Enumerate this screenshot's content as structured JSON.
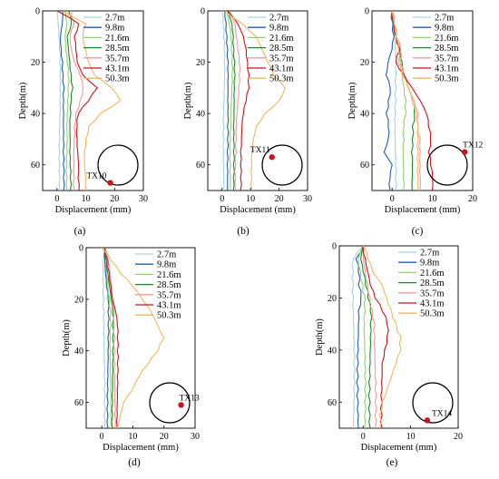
{
  "figure": {
    "legend_labels": [
      "2.7m",
      "9.8m",
      "21.6m",
      "28.5m",
      "35.7m",
      "43.1m",
      "50.3m"
    ],
    "series_colors": [
      "#a8d0e6",
      "#1f5fb0",
      "#8fd46a",
      "#1a8a2a",
      "#f39a9a",
      "#c8141e",
      "#f7b55c"
    ],
    "marker_color": "#c8141e"
  },
  "chart_data": [
    {
      "type": "line",
      "panel_label": "(a)",
      "xlabel": "Displacement (mm)",
      "ylabel": "Depth(m)",
      "xlim": [
        -5,
        30
      ],
      "ylim": [
        0,
        70
      ],
      "xticks": [
        0,
        10,
        20,
        30
      ],
      "yticks": [
        0,
        20,
        40,
        60
      ],
      "tick_labels_x": [
        "0",
        "10",
        "20",
        "30"
      ],
      "tick_labels_y": [
        "0",
        "20",
        "40",
        "60"
      ],
      "y_inverted": true,
      "legend": [
        "2.7m",
        "9.8m",
        "21.6m",
        "28.5m",
        "35.7m",
        "43.1m",
        "50.3m"
      ],
      "legend_position": "top-right",
      "annotation": {
        "text": "TX10",
        "position": "bottom-right",
        "marker_x": 18.5,
        "marker_y": 67
      },
      "depth": [
        0,
        5,
        10,
        15,
        20,
        25,
        30,
        35,
        40,
        45,
        50,
        55,
        60,
        65,
        70
      ],
      "series": [
        {
          "name": "2.7m",
          "values": [
            0,
            0.4,
            0.6,
            0.8,
            0.9,
            1,
            1,
            1,
            1.1,
            1,
            1,
            0.9,
            1,
            1,
            1
          ]
        },
        {
          "name": "9.8m",
          "values": [
            2,
            1.8,
            1.2,
            1.5,
            2,
            2.2,
            2.5,
            2.3,
            2.3,
            2.2,
            2.2,
            2.1,
            2.2,
            2.2,
            2.3
          ]
        },
        {
          "name": "21.6m",
          "values": [
            3,
            3.5,
            2.8,
            3,
            3.5,
            3.8,
            3.8,
            3.6,
            3.5,
            3.4,
            3.6,
            3.5,
            3.4,
            3.5,
            3.5
          ]
        },
        {
          "name": "28.5m",
          "values": [
            4,
            5,
            3.5,
            4,
            4.5,
            5,
            5.5,
            5,
            4.8,
            4.5,
            4.6,
            4.4,
            4.5,
            4.6,
            4.6
          ]
        },
        {
          "name": "35.7m",
          "values": [
            5,
            6,
            4.5,
            5,
            6,
            8,
            9,
            8,
            6.5,
            6,
            6,
            5.8,
            5.9,
            6,
            6
          ]
        },
        {
          "name": "43.1m",
          "values": [
            0,
            7.5,
            6,
            6.5,
            7,
            9,
            14,
            11,
            7.5,
            7,
            7,
            7.2,
            7.5,
            7.3,
            7.6
          ]
        },
        {
          "name": "50.3m",
          "values": [
            2,
            10,
            9,
            10,
            11,
            13,
            19,
            22,
            15,
            11,
            10,
            9.5,
            9.5,
            10,
            10
          ]
        }
      ]
    },
    {
      "type": "line",
      "panel_label": "(b)",
      "xlabel": "Displacement (mm)",
      "ylabel": "Depth(m)",
      "xlim": [
        -5,
        30
      ],
      "ylim": [
        0,
        70
      ],
      "xticks": [
        0,
        10,
        20,
        30
      ],
      "yticks": [
        0,
        20,
        40,
        60
      ],
      "tick_labels_x": [
        "0",
        "10",
        "20",
        "30"
      ],
      "tick_labels_y": [
        "0",
        "20",
        "40",
        "60"
      ],
      "y_inverted": true,
      "legend": [
        "2.7m",
        "9.8m",
        "21.6m",
        "28.5m",
        "35.7m",
        "43.1m",
        "50.3m"
      ],
      "legend_position": "top-right",
      "annotation": {
        "text": "TX11",
        "position": "bottom-right",
        "marker_x": 17.5,
        "marker_y": 57
      },
      "depth": [
        0,
        5,
        10,
        15,
        20,
        25,
        30,
        35,
        40,
        45,
        50,
        55,
        60,
        65,
        70
      ],
      "series": [
        {
          "name": "2.7m",
          "values": [
            0,
            0.3,
            0.5,
            0.7,
            0.8,
            0.9,
            0.8,
            0.8,
            0.7,
            0.7,
            0.7,
            0.6,
            0.6,
            0.6,
            0.6
          ]
        },
        {
          "name": "9.8m",
          "values": [
            1,
            1.5,
            1.8,
            2,
            2.2,
            2.2,
            2.1,
            2,
            2,
            1.9,
            1.9,
            1.8,
            1.8,
            1.9,
            1.9
          ]
        },
        {
          "name": "21.6m",
          "values": [
            1.5,
            2.5,
            3,
            3.2,
            3.4,
            3.5,
            3.4,
            3.3,
            3.2,
            3.2,
            3,
            3,
            3,
            3,
            3
          ]
        },
        {
          "name": "28.5m",
          "values": [
            2,
            3.5,
            4,
            4.2,
            4.5,
            4.6,
            4.4,
            4.3,
            4.2,
            4,
            4,
            4,
            4,
            4,
            4
          ]
        },
        {
          "name": "35.7m",
          "values": [
            2.5,
            4.5,
            5,
            5.5,
            6,
            6,
            5.8,
            5.5,
            5.2,
            5,
            5,
            5,
            4.8,
            4.8,
            4.8
          ]
        },
        {
          "name": "43.1m",
          "values": [
            2,
            5.5,
            7.5,
            8.5,
            9,
            9.5,
            9.5,
            8.5,
            7.5,
            7,
            6.8,
            6.5,
            6.5,
            6.5,
            6.5
          ]
        },
        {
          "name": "50.3m",
          "values": [
            1,
            7,
            12,
            14,
            16,
            18,
            22,
            20,
            15,
            12,
            11,
            10.5,
            10.5,
            10.5,
            10.5
          ]
        }
      ]
    },
    {
      "type": "line",
      "panel_label": "(c)",
      "xlabel": "Displacement (mm)",
      "ylabel": "Depth(m)",
      "xlim": [
        -5,
        20
      ],
      "ylim": [
        0,
        70
      ],
      "xticks": [
        0,
        10,
        20
      ],
      "yticks": [
        0,
        20,
        40,
        60
      ],
      "tick_labels_x": [
        "0",
        "10",
        "20"
      ],
      "tick_labels_y": [
        "0",
        "20",
        "40",
        "60"
      ],
      "y_inverted": true,
      "legend": [
        "2.7m",
        "9.8m",
        "21.6m",
        "28.5m",
        "35.7m",
        "43.1m",
        "50.3m"
      ],
      "legend_position": "top-right",
      "annotation": {
        "text": "TX12",
        "position": "bottom-right",
        "marker_x": 18,
        "marker_y": 55
      },
      "depth": [
        0,
        5,
        10,
        15,
        20,
        25,
        30,
        35,
        40,
        45,
        50,
        55,
        60,
        65,
        70
      ],
      "series": [
        {
          "name": "2.7m",
          "values": [
            0,
            0.3,
            0.5,
            0.8,
            1,
            1,
            1,
            1,
            0.9,
            0.8,
            0.8,
            0.8,
            0.8,
            0.8,
            0.8
          ]
        },
        {
          "name": "9.8m",
          "values": [
            0,
            0.2,
            0.5,
            0,
            -1,
            -1.5,
            -0.5,
            -1,
            -1.5,
            -1,
            -1,
            -2,
            0,
            -0.5,
            -0.5
          ]
        },
        {
          "name": "21.6m",
          "values": [
            0,
            0.5,
            1,
            1.5,
            2,
            2.5,
            3,
            3.5,
            3.5,
            3,
            3,
            2.8,
            2.8,
            2.8,
            2.8
          ]
        },
        {
          "name": "28.5m",
          "values": [
            0,
            0.5,
            1,
            2,
            2.5,
            3,
            4,
            5,
            5.5,
            5,
            5,
            4.8,
            5,
            5,
            5
          ]
        },
        {
          "name": "35.7m",
          "values": [
            0,
            0.5,
            1,
            2,
            2,
            3,
            4,
            5.5,
            6.5,
            6.5,
            7,
            7,
            7,
            7,
            7
          ]
        },
        {
          "name": "43.1m",
          "values": [
            0,
            0.5,
            1,
            2,
            1,
            3,
            5,
            7,
            8.5,
            9,
            9.5,
            9,
            9.5,
            10,
            10
          ]
        },
        {
          "name": "50.3m",
          "values": [
            0,
            0.5,
            1,
            1.5,
            1.5,
            2.5,
            4,
            5,
            6,
            6.5,
            6.5,
            6.5,
            6.5,
            6.5,
            6.5
          ]
        }
      ]
    },
    {
      "type": "line",
      "panel_label": "(d)",
      "xlabel": "Displacement (mm)",
      "ylabel": "Depth(m)",
      "xlim": [
        -5,
        30
      ],
      "ylim": [
        0,
        70
      ],
      "xticks": [
        0,
        10,
        20,
        30
      ],
      "yticks": [
        0,
        20,
        40,
        60
      ],
      "tick_labels_x": [
        "0",
        "10",
        "20",
        "30"
      ],
      "tick_labels_y": [
        "0",
        "20",
        "40",
        "60"
      ],
      "y_inverted": true,
      "legend": [
        "2.7m",
        "9.8m",
        "21.6m",
        "28.5m",
        "35.7m",
        "43.1m",
        "50.3m"
      ],
      "legend_position": "top-right",
      "annotation": {
        "text": "TX13",
        "position": "bottom-right",
        "marker_x": 25.5,
        "marker_y": 61
      },
      "depth": [
        0,
        5,
        10,
        15,
        20,
        25,
        30,
        35,
        40,
        45,
        50,
        55,
        60,
        65,
        70
      ],
      "series": [
        {
          "name": "2.7m",
          "values": [
            1,
            0.5,
            0.5,
            0.6,
            0.7,
            0.8,
            0.8,
            0.8,
            0.8,
            0.8,
            0.8,
            0.8,
            0.8,
            0.8,
            0.8
          ]
        },
        {
          "name": "9.8m",
          "values": [
            1,
            1,
            1.2,
            1.5,
            2,
            2,
            2,
            2,
            2,
            2,
            2,
            2,
            2,
            2,
            2
          ]
        },
        {
          "name": "21.6m",
          "values": [
            1,
            1.5,
            1.5,
            2,
            2.5,
            3,
            3,
            2.8,
            2.8,
            2.8,
            2.8,
            2.8,
            2.8,
            2.8,
            2.8
          ]
        },
        {
          "name": "28.5m",
          "values": [
            1,
            1.5,
            2,
            2.5,
            3,
            3.5,
            3.5,
            3.5,
            3.5,
            3.5,
            3.5,
            3.5,
            3.5,
            3.5,
            3.5
          ]
        },
        {
          "name": "35.7m",
          "values": [
            1,
            2,
            2.5,
            3,
            3.5,
            4,
            4,
            4.2,
            4.2,
            4.2,
            4.2,
            4.2,
            4.2,
            4.2,
            4.2
          ]
        },
        {
          "name": "43.1m",
          "values": [
            1,
            2,
            2.5,
            3,
            3.5,
            4.5,
            5,
            5,
            5,
            5,
            5,
            5,
            5,
            5,
            5
          ]
        },
        {
          "name": "50.3m",
          "values": [
            0,
            3,
            6,
            10,
            13,
            16,
            18,
            20,
            18,
            15,
            12,
            10,
            7,
            6,
            5
          ]
        }
      ]
    },
    {
      "type": "line",
      "panel_label": "(e)",
      "xlabel": "Displacement (mm)",
      "ylabel": "Depth(m)",
      "xlim": [
        -5,
        20
      ],
      "ylim": [
        0,
        70
      ],
      "xticks": [
        0,
        10,
        20
      ],
      "yticks": [
        0,
        20,
        40,
        60
      ],
      "tick_labels_x": [
        "0",
        "10",
        "20"
      ],
      "tick_labels_y": [
        "0",
        "20",
        "40",
        "60"
      ],
      "y_inverted": true,
      "legend": [
        "2.7m",
        "9.8m",
        "21.6m",
        "28.5m",
        "35.7m",
        "43.1m",
        "50.3m"
      ],
      "legend_position": "top-right",
      "annotation": {
        "text": "TX14",
        "position": "bottom-right",
        "marker_x": 13.5,
        "marker_y": 67
      },
      "depth": [
        0,
        5,
        10,
        15,
        20,
        25,
        30,
        35,
        40,
        45,
        50,
        55,
        60,
        65,
        70
      ],
      "series": [
        {
          "name": "2.7m",
          "values": [
            0,
            -2,
            -2,
            -2,
            -2,
            -2,
            -2,
            -2,
            -2,
            -2,
            -2,
            -2,
            -2,
            -2,
            -2
          ]
        },
        {
          "name": "9.8m",
          "values": [
            0,
            -1.5,
            -1,
            -1,
            -0.5,
            -1,
            -1,
            -1,
            -1,
            -1,
            -1,
            -1,
            -1,
            -1,
            -1
          ]
        },
        {
          "name": "21.6m",
          "values": [
            0,
            -1,
            -0.5,
            0,
            0.5,
            0.5,
            0.3,
            0.3,
            0.3,
            0.3,
            0.3,
            0.3,
            0.3,
            0.3,
            0.3
          ]
        },
        {
          "name": "28.5m",
          "values": [
            0,
            -0.5,
            0,
            0.5,
            1,
            1.5,
            1.5,
            1.5,
            1.5,
            1.5,
            1.5,
            1.5,
            1.5,
            1.5,
            1.5
          ]
        },
        {
          "name": "35.7m",
          "values": [
            0,
            0,
            0.5,
            1,
            1.5,
            2,
            2.5,
            2.5,
            2.5,
            2.5,
            2.5,
            2.5,
            2.5,
            2.5,
            2.5
          ]
        },
        {
          "name": "43.1m",
          "values": [
            0,
            0.5,
            1,
            1.5,
            2.5,
            4,
            5,
            5,
            4.5,
            4,
            4,
            4,
            4,
            4,
            4
          ]
        },
        {
          "name": "50.3m",
          "values": [
            0,
            1,
            2,
            4,
            5,
            6,
            7,
            8,
            8,
            7,
            6,
            5,
            4,
            3.5,
            3.5
          ]
        }
      ]
    }
  ]
}
